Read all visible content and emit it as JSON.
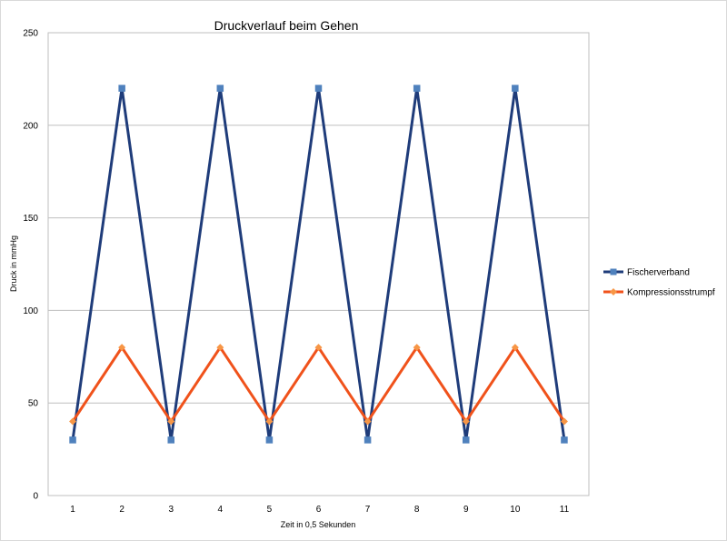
{
  "chart_data": {
    "type": "line",
    "title": "Druckverlauf beim Gehen",
    "xlabel": "Zeit in 0,5 Sekunden",
    "ylabel": "Druck in mmHg",
    "categories": [
      "1",
      "2",
      "3",
      "4",
      "5",
      "6",
      "7",
      "8",
      "9",
      "10",
      "11"
    ],
    "ylim": [
      0,
      250
    ],
    "yticks": [
      0,
      50,
      100,
      150,
      200,
      250
    ],
    "grid": true,
    "legend_position": "right",
    "series": [
      {
        "name": "Fischerverband",
        "values": [
          30,
          220,
          30,
          220,
          30,
          220,
          30,
          220,
          30,
          220,
          30
        ],
        "line_color": "#1f3c7a",
        "marker": "square",
        "marker_color": "#4f81bd"
      },
      {
        "name": "Kompressionsstrumpf",
        "values": [
          40,
          80,
          40,
          80,
          40,
          80,
          40,
          80,
          40,
          80,
          40
        ],
        "line_color": "#f0521b",
        "marker": "diamond",
        "marker_color": "#f79646"
      }
    ]
  }
}
